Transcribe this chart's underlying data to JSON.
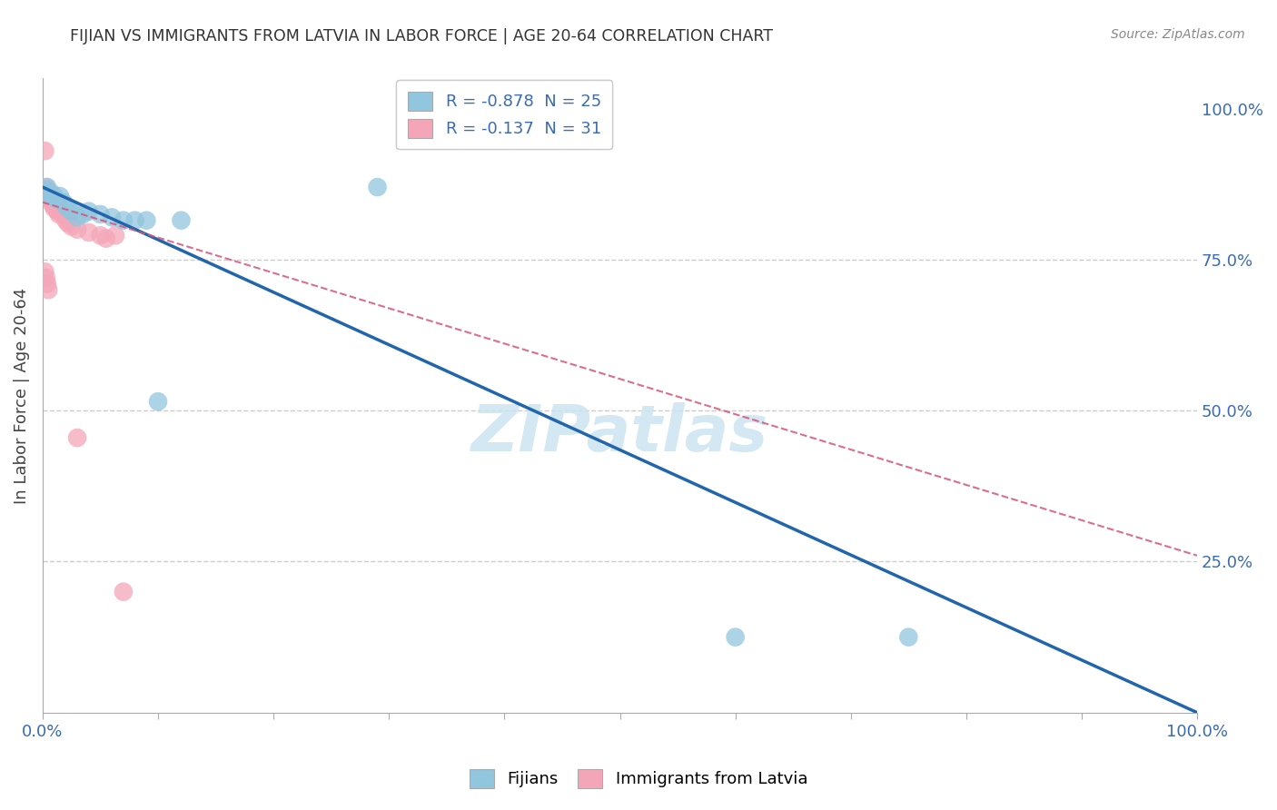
{
  "title": "FIJIAN VS IMMIGRANTS FROM LATVIA IN LABOR FORCE | AGE 20-64 CORRELATION CHART",
  "source": "Source: ZipAtlas.com",
  "ylabel": "In Labor Force | Age 20-64",
  "right_yticks": [
    1.0,
    0.75,
    0.5,
    0.25
  ],
  "right_yticklabels": [
    "100.0%",
    "75.0%",
    "50.0%",
    "25.0%"
  ],
  "legend_blue": "R = -0.878  N = 25",
  "legend_pink": "R = -0.137  N = 31",
  "legend_label_blue": "Fijians",
  "legend_label_pink": "Immigrants from Latvia",
  "blue_color": "#92c5de",
  "pink_color": "#f4a6b8",
  "blue_line_color": "#2166ac",
  "pink_line_color": "#d6537a",
  "watermark_color": "#cce4f0",
  "blue_x": [
    0.003,
    0.004,
    0.005,
    0.006,
    0.008,
    0.01,
    0.012,
    0.015,
    0.018,
    0.02,
    0.022,
    0.025,
    0.03,
    0.035,
    0.04,
    0.05,
    0.06,
    0.07,
    0.08,
    0.09,
    0.1,
    0.12,
    0.29,
    0.6,
    0.75
  ],
  "blue_y": [
    0.865,
    0.87,
    0.86,
    0.855,
    0.86,
    0.855,
    0.85,
    0.855,
    0.845,
    0.84,
    0.835,
    0.83,
    0.82,
    0.825,
    0.83,
    0.825,
    0.82,
    0.815,
    0.815,
    0.815,
    0.515,
    0.815,
    0.87,
    0.125,
    0.125
  ],
  "pink_x": [
    0.002,
    0.003,
    0.004,
    0.005,
    0.005,
    0.006,
    0.007,
    0.008,
    0.009,
    0.01,
    0.011,
    0.012,
    0.013,
    0.014,
    0.015,
    0.016,
    0.018,
    0.02,
    0.022,
    0.025,
    0.03,
    0.04,
    0.05,
    0.055,
    0.063,
    0.002,
    0.003,
    0.004,
    0.005,
    0.03,
    0.07
  ],
  "pink_y": [
    0.93,
    0.87,
    0.865,
    0.86,
    0.855,
    0.85,
    0.855,
    0.845,
    0.84,
    0.835,
    0.84,
    0.835,
    0.83,
    0.825,
    0.83,
    0.835,
    0.825,
    0.815,
    0.81,
    0.805,
    0.8,
    0.795,
    0.79,
    0.785,
    0.79,
    0.73,
    0.72,
    0.71,
    0.7,
    0.455,
    0.2
  ],
  "blue_line_x0": 0.0,
  "blue_line_y0": 0.87,
  "blue_line_x1": 1.0,
  "blue_line_y1": 0.0,
  "pink_line_x0": 0.0,
  "pink_line_y0": 0.845,
  "pink_line_x1": 1.0,
  "pink_line_y1": 0.26,
  "xlim": [
    0.0,
    1.0
  ],
  "ylim": [
    0.0,
    1.05
  ],
  "figsize": [
    14.06,
    8.92
  ],
  "dpi": 100
}
